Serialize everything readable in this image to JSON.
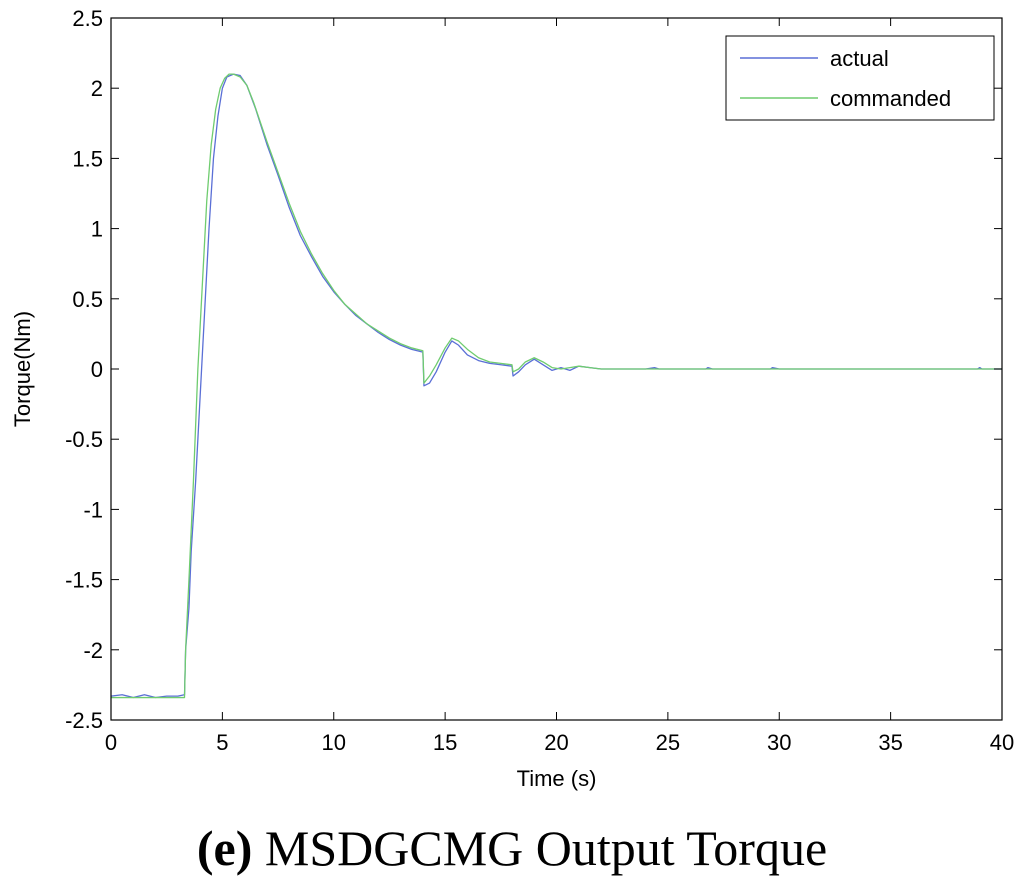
{
  "caption": {
    "label": "(e)",
    "text": "MSDGCMG Output Torque"
  },
  "chart_data": {
    "type": "line",
    "title": "",
    "xlabel": "Time (s)",
    "ylabel": "Torque(Nm)",
    "xlim": [
      0,
      40
    ],
    "ylim": [
      -2.5,
      2.5
    ],
    "xticks": [
      0,
      5,
      10,
      15,
      20,
      25,
      30,
      35,
      40
    ],
    "yticks": [
      2.5,
      2,
      1.5,
      1,
      0.5,
      0,
      -0.5,
      -1,
      -1.5,
      -2,
      -2.5
    ],
    "ytick_labels": [
      "2.5",
      "2",
      "1.5",
      "1",
      "0.5",
      "0",
      "-0.5",
      "-1",
      "-1.5",
      "-2",
      "-2.5"
    ],
    "grid": false,
    "legend_position": "top-right",
    "series": [
      {
        "name": "actual",
        "color": "#5a6fd6",
        "x": [
          0,
          0.5,
          1,
          1.5,
          2,
          2.5,
          3.0,
          3.3,
          3.35,
          3.5,
          3.6,
          3.8,
          4.0,
          4.2,
          4.4,
          4.6,
          4.8,
          5.0,
          5.2,
          5.5,
          5.8,
          6.1,
          6.5,
          7,
          7.5,
          8,
          8.5,
          9,
          9.5,
          10,
          10.5,
          11,
          11.5,
          12,
          12.5,
          13,
          13.5,
          14.0,
          14.05,
          14.3,
          14.6,
          15.0,
          15.3,
          15.6,
          16.0,
          16.5,
          17.0,
          17.5,
          18.0,
          18.05,
          18.3,
          18.6,
          19.0,
          19.4,
          19.8,
          20.2,
          20.6,
          21.0,
          21.5,
          22,
          23,
          24,
          24.4,
          24.6,
          25,
          26.7,
          26.8,
          27,
          29.6,
          29.7,
          30,
          38.9,
          39.0,
          39.1,
          40
        ],
        "y": [
          -2.33,
          -2.32,
          -2.34,
          -2.32,
          -2.34,
          -2.33,
          -2.33,
          -2.32,
          -2.0,
          -1.7,
          -1.3,
          -0.8,
          -0.2,
          0.4,
          1.0,
          1.5,
          1.8,
          2.0,
          2.08,
          2.1,
          2.09,
          2.02,
          1.85,
          1.6,
          1.38,
          1.15,
          0.95,
          0.8,
          0.66,
          0.55,
          0.46,
          0.38,
          0.32,
          0.26,
          0.21,
          0.17,
          0.14,
          0.12,
          -0.12,
          -0.1,
          -0.02,
          0.12,
          0.2,
          0.17,
          0.1,
          0.06,
          0.04,
          0.03,
          0.02,
          -0.05,
          -0.02,
          0.03,
          0.07,
          0.03,
          -0.01,
          0.01,
          -0.01,
          0.02,
          0.01,
          0.0,
          0.0,
          0.0,
          0.01,
          0.0,
          0.0,
          0.0,
          0.01,
          0.0,
          0.0,
          0.01,
          0.0,
          0.0,
          0.01,
          0.0,
          0.0
        ]
      },
      {
        "name": "commanded",
        "color": "#6fcc6f",
        "x": [
          0,
          3.3,
          3.35,
          3.5,
          3.7,
          3.9,
          4.1,
          4.3,
          4.5,
          4.7,
          4.9,
          5.1,
          5.3,
          5.5,
          5.8,
          6.1,
          6.4,
          7,
          7.5,
          8,
          8.5,
          9,
          9.5,
          10,
          10.5,
          11,
          11.5,
          12,
          12.5,
          13,
          13.5,
          14.0,
          14.05,
          14.3,
          14.6,
          15.0,
          15.3,
          15.6,
          16.0,
          16.5,
          17.0,
          17.5,
          18.0,
          18.05,
          18.3,
          18.6,
          19.0,
          19.4,
          19.8,
          20.2,
          20.6,
          21.0,
          21.5,
          22,
          23,
          40
        ],
        "y": [
          -2.34,
          -2.34,
          -2.0,
          -1.5,
          -0.8,
          0.0,
          0.6,
          1.2,
          1.6,
          1.85,
          2.0,
          2.07,
          2.1,
          2.1,
          2.08,
          2.02,
          1.9,
          1.62,
          1.4,
          1.18,
          0.98,
          0.82,
          0.68,
          0.56,
          0.46,
          0.39,
          0.32,
          0.27,
          0.22,
          0.18,
          0.15,
          0.13,
          -0.1,
          -0.05,
          0.03,
          0.15,
          0.22,
          0.2,
          0.14,
          0.08,
          0.05,
          0.04,
          0.03,
          -0.02,
          0.0,
          0.05,
          0.08,
          0.05,
          0.01,
          0.0,
          0.01,
          0.02,
          0.01,
          0.0,
          0.0,
          0.0
        ]
      }
    ]
  }
}
